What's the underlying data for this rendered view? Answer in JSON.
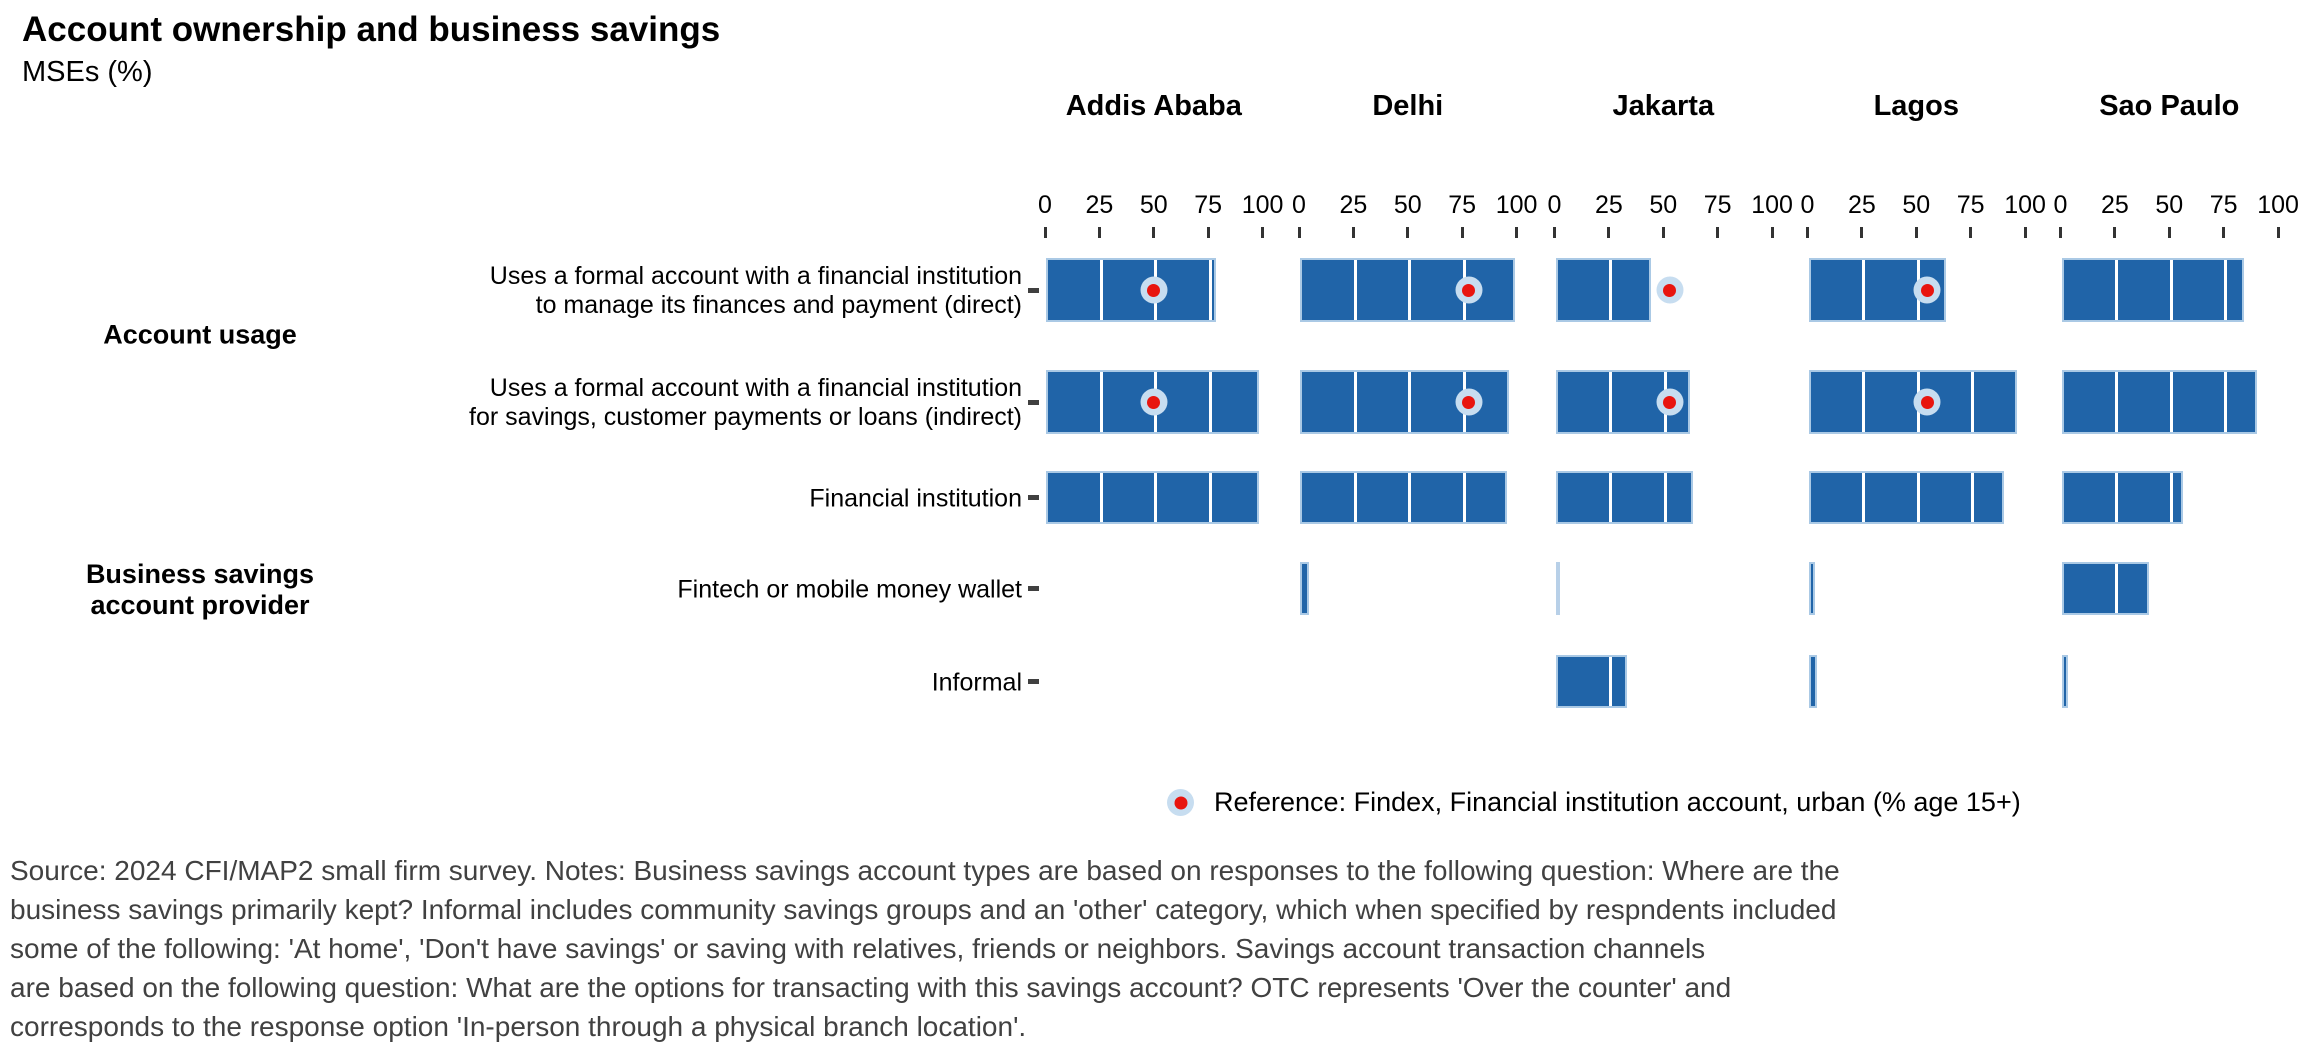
{
  "title": "Account ownership and business savings",
  "subtitle": "MSEs (%)",
  "sections": [
    {
      "label_lines": [
        "Account usage"
      ]
    },
    {
      "label_lines": [
        "Business savings",
        "account provider"
      ]
    }
  ],
  "legend": {
    "marker": "reference-dot",
    "label": "Reference: Findex, Financial institution account, urban (% age 15+)"
  },
  "footer_lines": [
    "Source: 2024 CFI/MAP2 small firm survey. Notes: Business savings account types are based on responses to the following question: Where are the",
    "business savings primarily kept? Informal includes community savings groups and an 'other' category, which when specified by respndents included",
    "some of the following: 'At home', 'Don't have savings' or saving with relatives, friends or neighbors. Savings account transaction channels",
    "are based on the following question: What are the options for transacting with this savings account? OTC represents 'Over the counter' and",
    "corresponds to the response option 'In-person through a physical branch location'."
  ],
  "chart_data": {
    "type": "bar",
    "orientation": "horizontal",
    "unit": "% of MSEs",
    "axis": {
      "range": [
        0,
        100
      ],
      "ticks": [
        0,
        25,
        50,
        75,
        100
      ],
      "gridlines": "white-over-bars"
    },
    "cities": [
      "Addis Ababa",
      "Delhi",
      "Jakarta",
      "Lagos",
      "Sao Paulo"
    ],
    "rows": [
      {
        "section": "Account usage",
        "label_lines": [
          "Uses a formal account with a financial institution",
          "to manage its finances and payment (direct)"
        ],
        "values": [
          78,
          99,
          44,
          63,
          84
        ],
        "reference": [
          50,
          78,
          53,
          55,
          null
        ]
      },
      {
        "section": "Account usage",
        "label_lines": [
          "Uses a formal account with a financial institution",
          "for savings, customer payments or loans (indirect)"
        ],
        "values": [
          98,
          96,
          62,
          96,
          90
        ],
        "reference": [
          50,
          78,
          53,
          55,
          null
        ]
      },
      {
        "section": "Business savings account provider",
        "label_lines": [
          "Financial institution"
        ],
        "values": [
          98,
          95,
          63,
          90,
          56
        ],
        "reference": [
          null,
          null,
          null,
          null,
          null
        ]
      },
      {
        "section": "Business savings account provider",
        "label_lines": [
          "Fintech or mobile money wallet"
        ],
        "values": [
          0,
          4,
          1,
          3,
          40
        ],
        "reference": [
          null,
          null,
          null,
          null,
          null
        ]
      },
      {
        "section": "Business savings account provider",
        "label_lines": [
          "Informal"
        ],
        "values": [
          0,
          0,
          33,
          4,
          3
        ],
        "reference": [
          null,
          null,
          null,
          null,
          null
        ]
      }
    ],
    "reference_legend": "Reference: Findex, Financial institution account, urban (% age 15+)",
    "colors": {
      "bar": "#2064a8",
      "bar_border": "#aac9e5",
      "reference_dot": "#e8150f",
      "reference_halo": "#c7ddf0",
      "gridline": "#ffffff",
      "footer_text": "#414141"
    }
  }
}
